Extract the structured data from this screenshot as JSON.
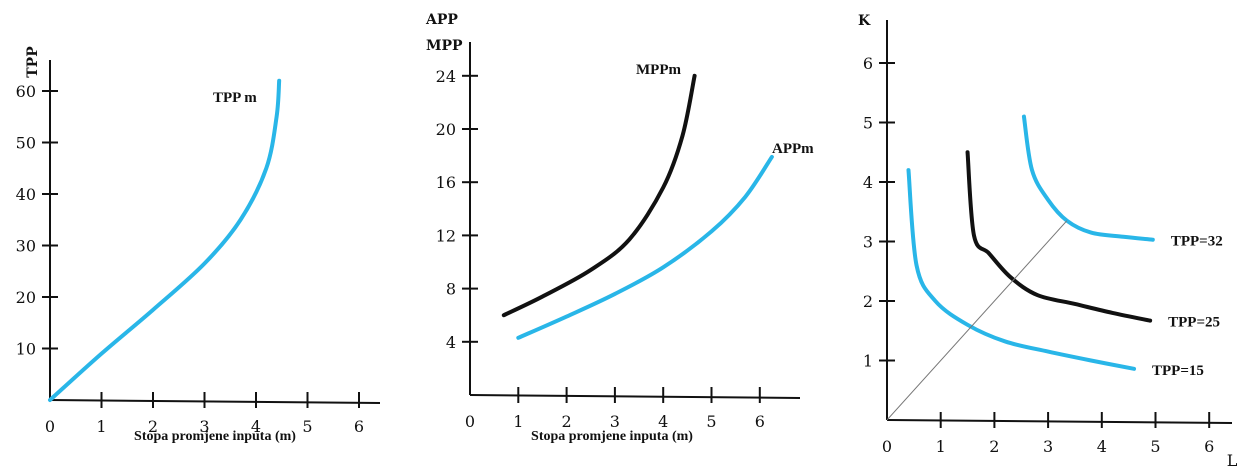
{
  "chart_data": [
    {
      "type": "line",
      "ylabel": "TPP",
      "xlabel": "Stopa promjene inputa (m)",
      "xlim": [
        0,
        6.5
      ],
      "ylim": [
        0,
        66
      ],
      "x_ticks": [
        "0",
        "1",
        "2",
        "3",
        "4",
        "5",
        "6"
      ],
      "y_ticks": [
        "10",
        "20",
        "30",
        "40",
        "50",
        "60"
      ],
      "series": [
        {
          "name": "TPP m",
          "color": "#29b6e8",
          "x": [
            0,
            1,
            2,
            3,
            3.7,
            4.2,
            4.4,
            4.45
          ],
          "y": [
            0,
            9,
            17.5,
            26.5,
            35,
            45,
            55,
            62
          ]
        }
      ]
    },
    {
      "type": "line",
      "ylabel": "APP\nMPP",
      "xlabel": "Stopa promjene inputa (m)",
      "xlim": [
        0,
        7
      ],
      "ylim": [
        0,
        27
      ],
      "x_ticks": [
        "0",
        "1",
        "2",
        "3",
        "4",
        "5",
        "6"
      ],
      "y_ticks": [
        "4",
        "8",
        "12",
        "16",
        "20",
        "24"
      ],
      "series": [
        {
          "name": "MPPm",
          "color": "#111111",
          "x": [
            0.7,
            1.5,
            2.5,
            3.3,
            4,
            4.4,
            4.65
          ],
          "y": [
            6,
            7.4,
            9.4,
            11.7,
            15.6,
            19.5,
            24
          ]
        },
        {
          "name": "APPm",
          "color": "#29b6e8",
          "x": [
            1,
            2,
            3,
            4,
            5,
            5.7,
            6.25
          ],
          "y": [
            4.3,
            5.9,
            7.6,
            9.6,
            12.3,
            14.9,
            17.9
          ]
        }
      ]
    },
    {
      "type": "line",
      "ylabel": "K",
      "xlabel": "L",
      "xlim": [
        0,
        6.6
      ],
      "ylim": [
        0,
        6.6
      ],
      "x_ticks": [
        "0",
        "1",
        "2",
        "3",
        "4",
        "5",
        "6"
      ],
      "y_ticks": [
        "1",
        "2",
        "3",
        "4",
        "5",
        "6"
      ],
      "series": [
        {
          "name": "TPP=32",
          "color": "#29b6e8",
          "x": [
            2.55,
            2.7,
            3,
            3.35,
            3.8,
            4.4,
            4.95
          ],
          "y": [
            5.1,
            4.2,
            3.7,
            3.35,
            3.15,
            3.08,
            3.03
          ]
        },
        {
          "name": "TPP=25",
          "color": "#111111",
          "x": [
            1.5,
            1.62,
            1.9,
            2.3,
            2.8,
            3.5,
            4.2,
            4.9
          ],
          "y": [
            4.5,
            3.1,
            2.8,
            2.4,
            2.1,
            1.95,
            1.8,
            1.67
          ]
        },
        {
          "name": "TPP=15",
          "color": "#29b6e8",
          "x": [
            0.4,
            0.55,
            0.9,
            1.5,
            2.2,
            3,
            3.8,
            4.6
          ],
          "y": [
            4.2,
            2.6,
            2,
            1.6,
            1.32,
            1.15,
            1,
            0.86
          ]
        },
        {
          "name": "",
          "color": "#888888",
          "x": [
            0,
            3.35
          ],
          "y": [
            0,
            3.35
          ]
        }
      ]
    }
  ]
}
